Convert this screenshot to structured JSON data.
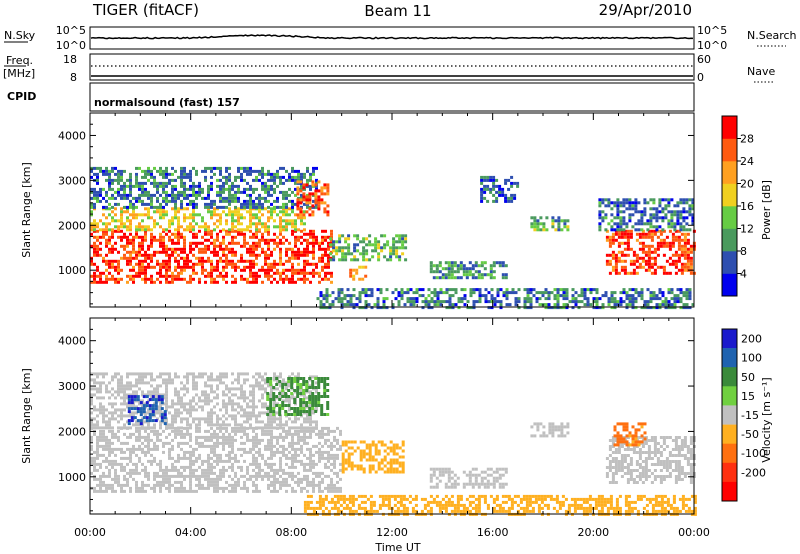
{
  "header": {
    "station": "TIGER (fitACF)",
    "beam": "Beam 11",
    "date": "29/Apr/2010"
  },
  "strips": {
    "nsky_label": "N.Sky",
    "nsky_top": "10^5",
    "nsky_bottom": "10^0",
    "nsearch_label": "N.Search",
    "nsearch_top": "10^5",
    "nsearch_bottom": "10^0",
    "freq_label_1": "Freq.",
    "freq_label_2": "[MHz]",
    "freq_top": "18",
    "freq_bottom": "8",
    "nave_label": "Nave",
    "nave_top": "60",
    "nave_bottom": "0",
    "cpid_label": "CPID",
    "cpid_value": "normalsound (fast) 157"
  },
  "colors": {
    "power_scale": [
      "#0000ee",
      "#2e4fb0",
      "#4a9a5e",
      "#66cc44",
      "#f0d020",
      "#ffa020",
      "#ff5a10",
      "#ff0000"
    ],
    "velocity_scale": [
      "#1a1acc",
      "#1f63b0",
      "#3a8a3a",
      "#70d040",
      "#c0c0c0",
      "#ffb020",
      "#ff7010",
      "#ff3010",
      "#ff0000"
    ]
  },
  "chart_data": [
    {
      "type": "heatmap",
      "name": "power",
      "ylabel": "Slant Range [km]",
      "xlabel": "Time UT",
      "x_range_hours": [
        0,
        24
      ],
      "xticks": [
        "00:00",
        "04:00",
        "08:00",
        "12:00",
        "16:00",
        "20:00",
        "00:00"
      ],
      "ylim": [
        180,
        4500
      ],
      "yticks": [
        1000,
        2000,
        3000,
        4000
      ],
      "colorbar_label": "Power [dB]",
      "colorbar_ticks": [
        4,
        8,
        12,
        16,
        20,
        24,
        28
      ],
      "colorbar_range": [
        0,
        30
      ],
      "regions": [
        {
          "t0": 0.0,
          "t1": 9.6,
          "r0": 700,
          "r1": 1900,
          "value": 28
        },
        {
          "t0": 0.0,
          "t1": 8.5,
          "r0": 1900,
          "r1": 2400,
          "value": 18
        },
        {
          "t0": 0.0,
          "t1": 9.0,
          "r0": 2400,
          "r1": 3300,
          "value": 8
        },
        {
          "t0": 8.2,
          "t1": 9.4,
          "r0": 2200,
          "r1": 3000,
          "value": 26
        },
        {
          "t0": 9.5,
          "t1": 12.5,
          "r0": 1200,
          "r1": 1800,
          "value": 12
        },
        {
          "t0": 10.3,
          "t1": 11.0,
          "r0": 800,
          "r1": 1100,
          "value": 22
        },
        {
          "t0": 13.5,
          "t1": 16.5,
          "r0": 800,
          "r1": 1200,
          "value": 10
        },
        {
          "t0": 15.5,
          "t1": 17.0,
          "r0": 2500,
          "r1": 3100,
          "value": 6
        },
        {
          "t0": 17.5,
          "t1": 19.0,
          "r0": 1900,
          "r1": 2200,
          "value": 12
        },
        {
          "t0": 20.5,
          "t1": 24.0,
          "r0": 900,
          "r1": 1900,
          "value": 28
        },
        {
          "t0": 20.2,
          "t1": 24.0,
          "r0": 1900,
          "r1": 2600,
          "value": 8
        },
        {
          "t0": 9.0,
          "t1": 24.0,
          "r0": 180,
          "r1": 600,
          "value": 8
        }
      ]
    },
    {
      "type": "heatmap",
      "name": "velocity",
      "ylabel": "Slant Range [km]",
      "xlabel": "Time UT",
      "x_range_hours": [
        0,
        24
      ],
      "xticks": [
        "00:00",
        "04:00",
        "08:00",
        "12:00",
        "16:00",
        "20:00",
        "00:00"
      ],
      "ylim": [
        180,
        4500
      ],
      "yticks": [
        1000,
        2000,
        3000,
        4000
      ],
      "colorbar_label": "Velocity [m s⁻¹]",
      "colorbar_ticks": [
        200,
        100,
        50,
        15,
        -15,
        -50,
        -100,
        -200
      ],
      "regions": [
        {
          "t0": 0.0,
          "t1": 10.0,
          "r0": 700,
          "r1": 2100,
          "value": 0
        },
        {
          "t0": 0.0,
          "t1": 9.0,
          "r0": 2100,
          "r1": 3300,
          "value": 0
        },
        {
          "t0": 1.5,
          "t1": 3.0,
          "r0": 2200,
          "r1": 2800,
          "value": 200
        },
        {
          "t0": 7.0,
          "t1": 9.5,
          "r0": 2400,
          "r1": 3200,
          "value": 60
        },
        {
          "t0": 10.0,
          "t1": 12.5,
          "r0": 1100,
          "r1": 1800,
          "value": -30
        },
        {
          "t0": 13.5,
          "t1": 16.5,
          "r0": 800,
          "r1": 1200,
          "value": 0
        },
        {
          "t0": 17.5,
          "t1": 19.0,
          "r0": 1900,
          "r1": 2200,
          "value": 0
        },
        {
          "t0": 20.5,
          "t1": 24.0,
          "r0": 900,
          "r1": 1900,
          "value": 0
        },
        {
          "t0": 20.8,
          "t1": 22.0,
          "r0": 1700,
          "r1": 2200,
          "value": -60
        },
        {
          "t0": 8.5,
          "t1": 24.0,
          "r0": 180,
          "r1": 600,
          "value": -30
        }
      ]
    }
  ]
}
